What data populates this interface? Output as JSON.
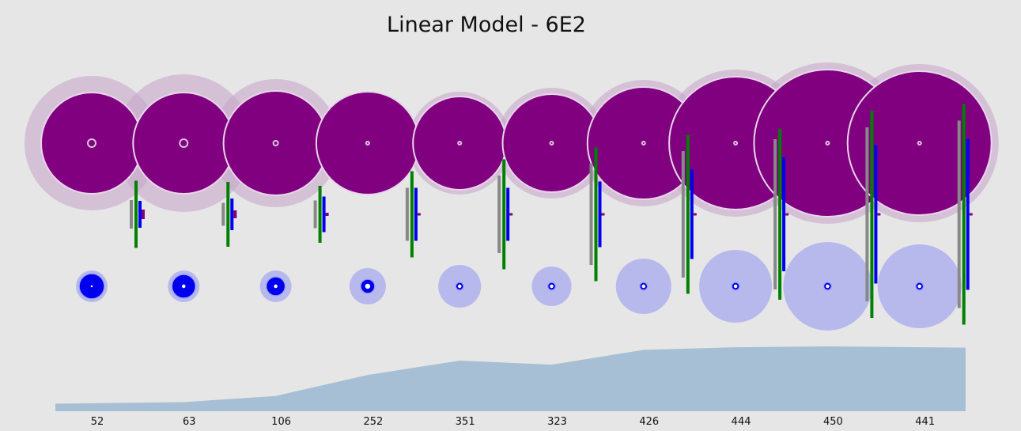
{
  "chart_data": {
    "type": "area",
    "title": "Linear Model - 6E2",
    "categories": [
      "52",
      "63",
      "106",
      "252",
      "351",
      "323",
      "426",
      "444",
      "450",
      "441"
    ],
    "values": [
      52,
      63,
      106,
      252,
      351,
      323,
      426,
      444,
      450,
      441
    ],
    "ylim": [
      0,
      450
    ],
    "colors": {
      "background": "#e6e6e6",
      "area": "#a7bfd4",
      "big_circle": "#800080",
      "big_halo": "#c8a8cc",
      "small_circle": "#0000ee",
      "small_halo": "#b7b9ec",
      "bar_gray": "#888888",
      "bar_green": "#008000",
      "bar_blue": "#0000ee",
      "bar_purple": "#800080"
    },
    "top_circles": {
      "outer": [
        85,
        87,
        81,
        65,
        65,
        70,
        80,
        93,
        102,
        100
      ],
      "inner": [
        64,
        64,
        66,
        65,
        59,
        62,
        71,
        84,
        93,
        91
      ],
      "center": [
        5,
        5,
        3,
        2,
        2,
        2,
        2,
        2,
        2,
        2
      ]
    },
    "bottom_circles": {
      "outer": [
        20,
        20,
        20,
        23,
        27,
        25,
        35,
        46,
        56,
        53
      ],
      "inner": [
        16,
        15,
        12,
        9,
        5,
        5,
        5,
        5,
        5,
        5
      ],
      "center": [
        2,
        3,
        3,
        4,
        3,
        3,
        3,
        3,
        3,
        3
      ]
    },
    "bars": {
      "gray": [
        36,
        29,
        35,
        67,
        98,
        128,
        160,
        190,
        220,
        237
      ],
      "green": [
        85,
        82,
        72,
        109,
        139,
        169,
        201,
        216,
        262,
        279
      ],
      "blue": [
        34,
        40,
        45,
        67,
        67,
        83,
        113,
        144,
        175,
        191
      ],
      "purple": [
        12,
        10,
        4,
        3,
        3,
        3,
        3,
        3,
        3,
        3
      ]
    }
  }
}
